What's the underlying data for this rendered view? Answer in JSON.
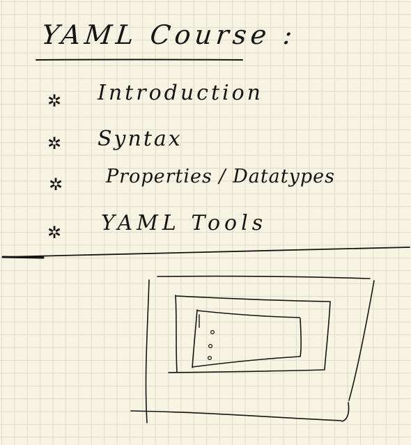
{
  "note": {
    "title": "YAML Course :",
    "items": [
      {
        "bullet_icon": "star-icon",
        "label": "Introduction"
      },
      {
        "bullet_icon": "star-icon",
        "label": "Syntax"
      },
      {
        "bullet_icon": "star-icon",
        "label": "Properties / Datatypes"
      },
      {
        "bullet_icon": "star-icon",
        "label": "YAML Tools"
      }
    ],
    "colors": {
      "paper": "#f7f4e3",
      "grid": "#dcdccd",
      "ink": "#151515"
    }
  }
}
